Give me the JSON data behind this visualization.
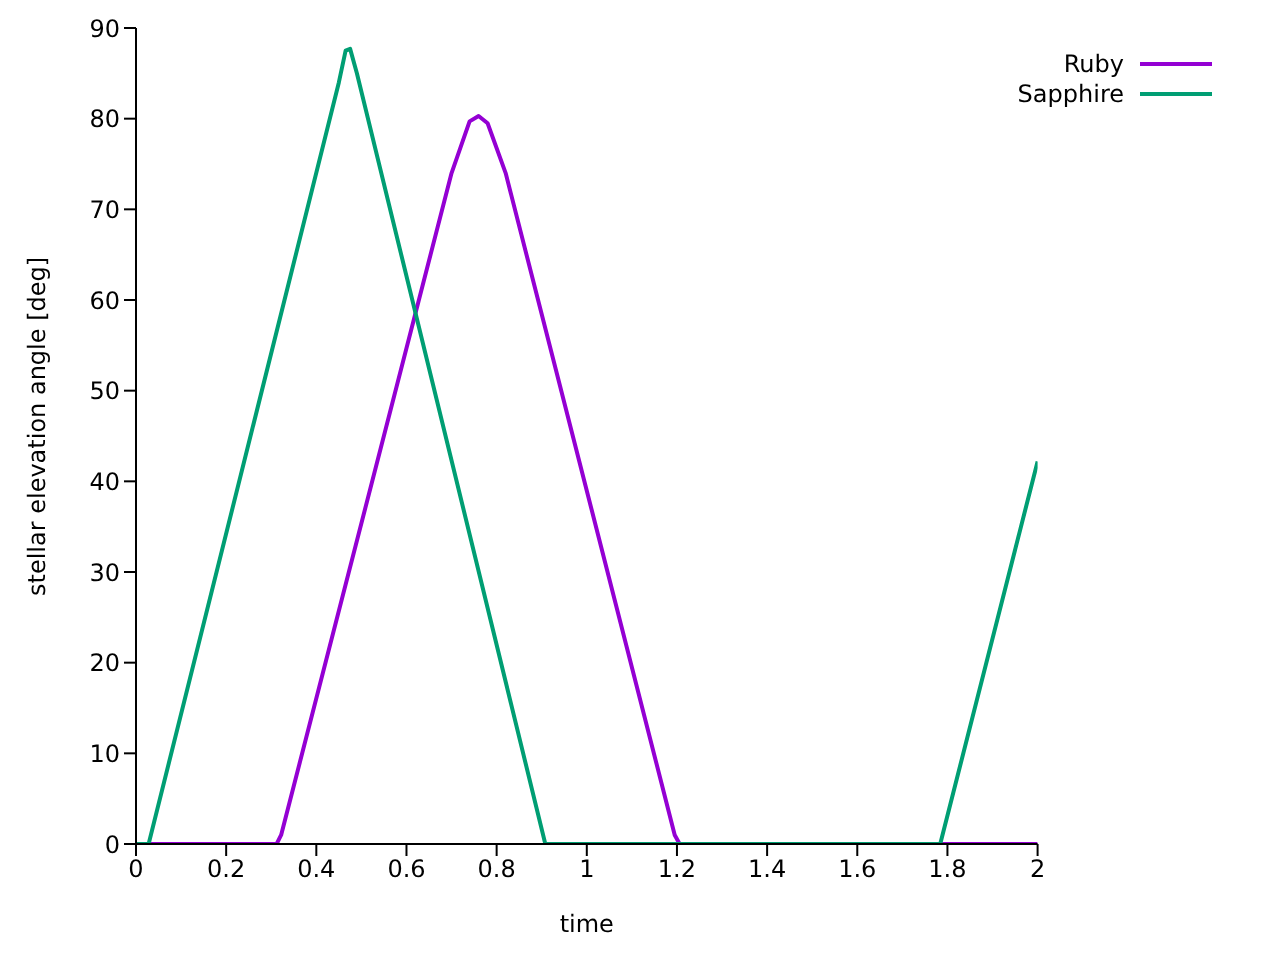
{
  "chart_data": {
    "type": "line",
    "xlabel": "time",
    "ylabel": "stellar elevation angle [deg]",
    "xlim": [
      0,
      2
    ],
    "xticks": [
      0,
      0.2,
      0.4,
      0.6,
      0.8,
      1,
      1.2,
      1.4,
      1.6,
      1.8,
      2
    ],
    "ylim": [
      0,
      90
    ],
    "yticks": [
      0,
      10,
      20,
      30,
      40,
      50,
      60,
      70,
      80,
      90
    ],
    "grid": false,
    "legend": "top right",
    "marker": "none",
    "line_style": "solid",
    "series": [
      {
        "name": "Ruby",
        "color": "#9400d3",
        "x": [
          0,
          0.312,
          0.322,
          0.7,
          0.74,
          0.76,
          0.78,
          0.82,
          1.195,
          1.206,
          2
        ],
        "values": [
          0,
          0,
          1,
          74,
          79.7,
          80.3,
          79.5,
          74,
          1,
          0,
          0
        ]
      },
      {
        "name": "Sapphire",
        "color": "#009e73",
        "x": [
          0,
          0.028,
          0.45,
          0.465,
          0.475,
          0.49,
          0.908,
          1.784,
          2
        ],
        "values": [
          0,
          0,
          84,
          87.5,
          87.7,
          85,
          0,
          0,
          42.2
        ]
      }
    ]
  }
}
